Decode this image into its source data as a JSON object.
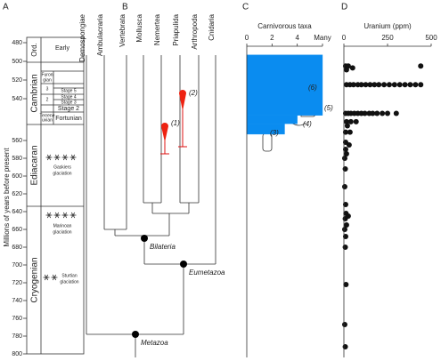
{
  "panel_labels": [
    "A",
    "B",
    "C",
    "D"
  ],
  "y_axis": {
    "title": "Millions of years before present",
    "ticks": [
      480,
      500,
      520,
      540,
      560,
      580,
      600,
      620,
      640,
      660,
      680,
      700,
      720,
      740,
      760,
      780,
      800
    ]
  },
  "timescale": {
    "periods": [
      "Ord.",
      "Cambrian",
      "Ediacaran",
      "Cryogenian"
    ],
    "early": "Early",
    "furongian": [
      "Furon",
      "gian"
    ],
    "series": [
      "3",
      "2"
    ],
    "stages": [
      "Stage 5",
      "Stage 4",
      "Stage 3",
      "Stage 2"
    ],
    "terreneuvian": [
      "Terrene",
      "uvian"
    ],
    "fortunian": "Fortunian",
    "glaciations": [
      [
        "Gaskiers",
        "glaciation"
      ],
      [
        "Marinoan",
        "glaciation"
      ],
      [
        "Sturtian",
        "glaciation"
      ]
    ]
  },
  "tree": {
    "taxa": [
      "Demospongiae",
      "Ambulacraria",
      "Vertebrata",
      "Mollusca",
      "Nemertea",
      "Priapulida",
      "Arthropoda",
      "Cnidaria"
    ],
    "clades": [
      "Bilateria",
      "Eumetazoa",
      "Metazoa"
    ],
    "markers": [
      "(1)",
      "(2)"
    ]
  },
  "chart_data": [
    {
      "type": "step-area",
      "x_title": "Carnivorous taxa",
      "color": "#0a8cf0",
      "xlim": [
        0,
        6
      ],
      "xticks": [
        0,
        2,
        4,
        {
          "value": 6,
          "label": "Many"
        }
      ],
      "age_bins": [
        493,
        548,
        552,
        557
      ],
      "values": [
        6,
        4,
        3
      ],
      "annotations": [
        "(3)",
        "(4)",
        "(5)",
        "(6)"
      ]
    },
    {
      "type": "scatter",
      "x_title": "Uranium (ppm)",
      "color": "#111111",
      "xlim": [
        0,
        500
      ],
      "xticks": [
        0,
        250,
        500
      ],
      "x": [
        10,
        25,
        50,
        15,
        440,
        15,
        35,
        55,
        80,
        100,
        125,
        150,
        175,
        200,
        230,
        260,
        290,
        320,
        350,
        380,
        410,
        440,
        10,
        25,
        40,
        60,
        80,
        100,
        120,
        145,
        165,
        190,
        220,
        250,
        300,
        15,
        40,
        70,
        20,
        10,
        35,
        10,
        30,
        10,
        15,
        5,
        8,
        5,
        10,
        12,
        25,
        8,
        15,
        5,
        10,
        8,
        12,
        5,
        8
      ],
      "y": [
        505,
        505,
        507,
        509,
        505,
        525,
        525,
        525,
        525,
        525,
        525,
        525,
        525,
        525,
        525,
        525,
        525,
        525,
        525,
        525,
        525,
        525,
        547,
        547,
        547,
        547,
        547,
        547,
        547,
        547,
        547,
        547,
        547,
        547,
        547,
        551,
        551,
        551,
        553,
        556,
        556,
        562,
        565,
        570,
        575,
        580,
        592,
        612,
        632,
        642,
        645,
        648,
        655,
        660,
        668,
        680,
        722,
        767,
        792
      ]
    }
  ]
}
